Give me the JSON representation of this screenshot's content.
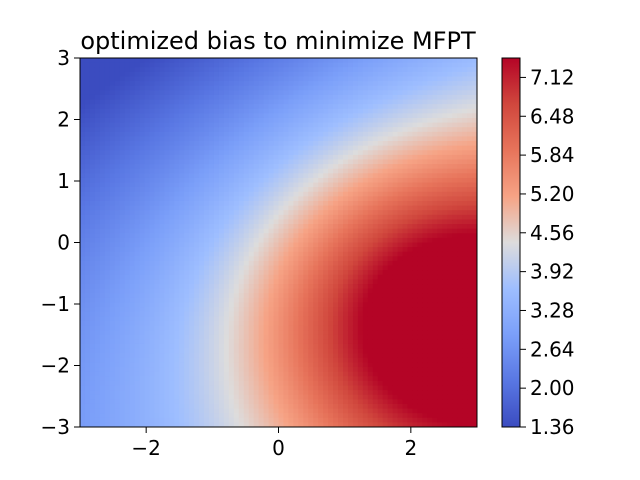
{
  "chart_data": {
    "type": "heatmap",
    "title": "optimized bias to minimize MFPT",
    "xlabel": "",
    "ylabel": "",
    "xlim": [
      -3,
      3
    ],
    "ylim": [
      -3,
      3
    ],
    "x_ticks": [
      -2,
      0,
      2
    ],
    "x_tick_labels": [
      "−2",
      "0",
      "2"
    ],
    "y_ticks": [
      3,
      2,
      1,
      0,
      -1,
      -2,
      -3
    ],
    "y_tick_labels": [
      "3",
      "2",
      "1",
      "0",
      "−1",
      "−2",
      "−3"
    ],
    "colormap": "coolwarm",
    "colorbar": {
      "min": 1.36,
      "max": 7.44,
      "ticks": [
        1.36,
        2.0,
        2.64,
        3.28,
        3.92,
        4.56,
        5.2,
        5.84,
        6.48,
        7.12
      ],
      "tick_labels": [
        "1.36",
        "2.00",
        "2.64",
        "3.28",
        "3.92",
        "4.56",
        "5.20",
        "5.84",
        "6.48",
        "7.12"
      ]
    },
    "field": {
      "description_values": [
        {
          "x": 2.5,
          "y": -1.2,
          "value": 7.44
        },
        {
          "x": -3.0,
          "y": 3.0,
          "value": 1.36
        },
        {
          "x": -3.0,
          "y": -1.2,
          "value": 3.8
        },
        {
          "x": 0.0,
          "y": -1.2,
          "value": 5.6
        },
        {
          "x": 0.0,
          "y": 1.5,
          "value": 4.3
        }
      ]
    }
  }
}
